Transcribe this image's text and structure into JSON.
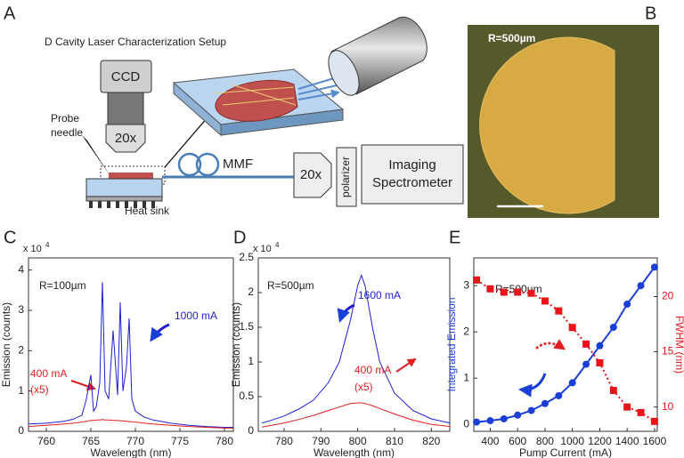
{
  "panel_a": {
    "label": "A",
    "title": "D Cavity Laser Characterization Setup",
    "ccd": "CCD",
    "objective_top": "20x",
    "probe": "Probe",
    "needle": "needle",
    "fiber": "MMF",
    "objective_right": "20x",
    "polarizer": "polarizer",
    "spectrometer_1": "Imaging",
    "spectrometer_2": "Spectrometer",
    "heat_sink": "Heat sink"
  },
  "panel_b": {
    "label": "B",
    "radius": "R=500µm"
  },
  "chart_data": [
    {
      "label": "C",
      "type": "line",
      "multiplier": "x 10",
      "multiplier_exp": "4",
      "xlabel": "Wavelength (nm)",
      "ylabel": "Emission (counts)",
      "annotation": "R=100µm",
      "note": "(x5)",
      "x": [
        758,
        760,
        762,
        763,
        764,
        764.5,
        765,
        765.3,
        765.6,
        766,
        766.3,
        766.6,
        767,
        767.5,
        768,
        768.3,
        768.6,
        769,
        769.3,
        769.6,
        770,
        771,
        772,
        774,
        776,
        778,
        780,
        781
      ],
      "xlim": [
        758,
        781
      ],
      "xticks": [
        760,
        765,
        770,
        775,
        780
      ],
      "ylim": [
        0,
        4.3
      ],
      "yticks": [
        0,
        1,
        2,
        3,
        4
      ],
      "series": [
        {
          "name": "1000 mA",
          "color": "#1f1fd0",
          "values": [
            0.18,
            0.2,
            0.25,
            0.3,
            0.4,
            0.8,
            1.4,
            0.5,
            0.6,
            1.2,
            3.7,
            1.0,
            0.8,
            2.5,
            0.9,
            3.2,
            1.0,
            1.6,
            2.8,
            0.8,
            0.5,
            0.35,
            0.28,
            0.2,
            0.15,
            0.12,
            0.1,
            0.1
          ]
        },
        {
          "name": "400 mA",
          "color": "#e02020",
          "values": [
            0.12,
            0.15,
            0.18,
            0.2,
            0.23,
            0.25,
            0.27,
            0.27,
            0.28,
            0.28,
            0.29,
            0.28,
            0.28,
            0.27,
            0.27,
            0.26,
            0.26,
            0.25,
            0.24,
            0.24,
            0.23,
            0.2,
            0.18,
            0.15,
            0.12,
            0.1,
            0.08,
            0.08
          ]
        }
      ]
    },
    {
      "label": "D",
      "type": "line",
      "multiplier": "x 10",
      "multiplier_exp": "4",
      "xlabel": "Wavelength (nm)",
      "ylabel": "Emission (counts)",
      "annotation": "R=500µm",
      "note": "(x5)",
      "x": [
        774,
        776,
        780,
        784,
        788,
        792,
        795,
        798,
        800,
        801,
        802,
        804,
        806,
        810,
        815,
        820,
        825
      ],
      "xlim": [
        773,
        825
      ],
      "xticks": [
        780,
        790,
        800,
        810,
        820
      ],
      "ylim": [
        0,
        2.5
      ],
      "yticks": [
        0,
        0.5,
        1,
        1.5,
        2,
        2.5
      ],
      "series": [
        {
          "name": "1600 mA",
          "color": "#1f1fd0",
          "values": [
            0.12,
            0.15,
            0.22,
            0.32,
            0.45,
            0.7,
            1.0,
            1.6,
            2.1,
            2.25,
            2.1,
            1.5,
            1.0,
            0.55,
            0.3,
            0.18,
            0.12
          ]
        },
        {
          "name": "400 mA",
          "color": "#e02020",
          "values": [
            0.06,
            0.08,
            0.12,
            0.17,
            0.23,
            0.3,
            0.35,
            0.4,
            0.41,
            0.41,
            0.4,
            0.37,
            0.33,
            0.25,
            0.16,
            0.1,
            0.07
          ]
        }
      ]
    },
    {
      "label": "E",
      "type": "line",
      "xlabel": "Pump Current (mA)",
      "ylabel": "Integrated Emission",
      "y2label": "FWHM (nm)",
      "annotation": "R=500µm",
      "x": [
        300,
        400,
        500,
        600,
        700,
        800,
        900,
        1000,
        1100,
        1200,
        1300,
        1400,
        1500,
        1600
      ],
      "xlim": [
        280,
        1620
      ],
      "xticks": [
        400,
        600,
        800,
        1000,
        1200,
        1400,
        1600
      ],
      "ylim": [
        -0.15,
        3.6
      ],
      "yticks": [
        0,
        1,
        2,
        3
      ],
      "y2lim": [
        7.8,
        23.5
      ],
      "y2ticks": [
        10,
        15,
        20
      ],
      "series": [
        {
          "color": "#1a3fd6",
          "marker": "circle",
          "dashed": false,
          "values": [
            0.05,
            0.08,
            0.12,
            0.2,
            0.3,
            0.45,
            0.62,
            0.9,
            1.3,
            1.7,
            2.1,
            2.6,
            3.0,
            3.4
          ]
        },
        {
          "color": "#e8141a",
          "marker": "square",
          "dashed": true,
          "axis": "y2",
          "values": [
            21.5,
            20.7,
            20.4,
            20.4,
            20.3,
            19.6,
            18.7,
            17.2,
            15.7,
            14,
            11.5,
            10,
            9.5,
            8.7
          ]
        }
      ]
    }
  ]
}
